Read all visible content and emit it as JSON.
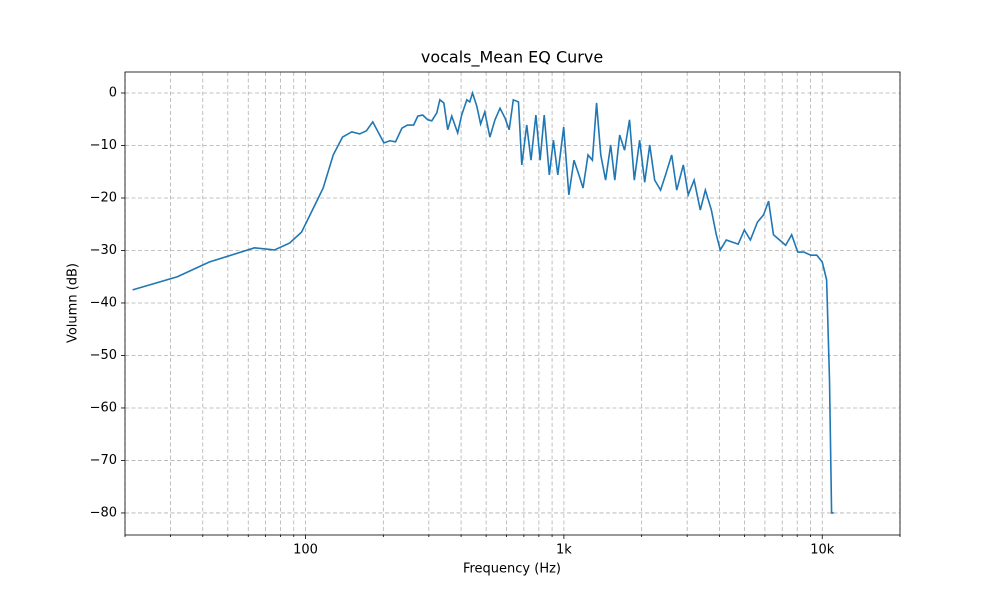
{
  "chart_data": {
    "type": "line",
    "title": "vocals_Mean EQ Curve",
    "xlabel": "Frequency (Hz)",
    "ylabel": "Volumn (dB)",
    "xscale": "log",
    "grid": true,
    "color": "#1f77b4",
    "xlim": [
      20,
      20000
    ],
    "ylim": [
      -84.2,
      4
    ],
    "xticks": [
      {
        "value": 100,
        "label": "100"
      },
      {
        "value": 1000,
        "label": "1k"
      },
      {
        "value": 10000,
        "label": "10k"
      }
    ],
    "xminorticks": [
      20,
      30,
      40,
      50,
      60,
      70,
      80,
      90,
      200,
      300,
      400,
      500,
      600,
      700,
      800,
      900,
      2000,
      3000,
      4000,
      5000,
      6000,
      7000,
      8000,
      9000,
      20000
    ],
    "yticks": [
      {
        "value": 0,
        "label": "0"
      },
      {
        "value": -10,
        "label": "−10"
      },
      {
        "value": -20,
        "label": "−20"
      },
      {
        "value": -30,
        "label": "−30"
      },
      {
        "value": -40,
        "label": "−40"
      },
      {
        "value": -50,
        "label": "−50"
      },
      {
        "value": -60,
        "label": "−60"
      },
      {
        "value": -70,
        "label": "−70"
      },
      {
        "value": -80,
        "label": "−80"
      }
    ],
    "x": [
      21.4,
      31.9,
      42.4,
      63.4,
      75.8,
      86.7,
      96.5,
      111,
      117,
      128,
      139,
      151,
      162,
      172,
      182,
      201,
      212,
      223,
      236,
      248,
      262,
      272,
      284,
      297,
      308,
      322,
      331,
      343,
      355,
      368,
      388,
      402,
      421,
      432,
      443,
      460,
      476,
      494,
      517,
      541,
      566,
      592,
      614,
      637,
      667,
      687,
      718,
      746,
      779,
      809,
      839,
      878,
      911,
      947,
      998,
      1045,
      1094,
      1143,
      1186,
      1240,
      1289,
      1338,
      1389,
      1450,
      1517,
      1574,
      1644,
      1717,
      1795,
      1873,
      1964,
      2055,
      2149,
      2246,
      2367,
      2475,
      2614,
      2734,
      2899,
      3029,
      3192,
      3373,
      3528,
      3723,
      3890,
      4030,
      4252,
      4486,
      4730,
      4994,
      5271,
      5614,
      5930,
      6198,
      6475,
      6836,
      7217,
      7615,
      8040,
      8483,
      9030,
      9530,
      10000,
      10400,
      10670,
      10870,
      11070
    ],
    "values": [
      -37.5,
      -35,
      -32.2,
      -29.5,
      -29.9,
      -28.6,
      -26.5,
      -20.4,
      -18.1,
      -11.8,
      -8.4,
      -7.4,
      -7.8,
      -7.2,
      -5.5,
      -9.5,
      -9.1,
      -9.3,
      -6.7,
      -6.1,
      -6.1,
      -4.4,
      -4.2,
      -5.1,
      -5.3,
      -3.8,
      -1.3,
      -1.9,
      -7,
      -4.4,
      -7.6,
      -4.2,
      -1.3,
      -1.7,
      0,
      -2.5,
      -5.9,
      -3.6,
      -8.4,
      -5.1,
      -2.9,
      -4.8,
      -7,
      -1.3,
      -1.7,
      -13.7,
      -6.1,
      -12.8,
      -4.2,
      -12.8,
      -4.2,
      -15.6,
      -9,
      -15.6,
      -6.5,
      -19.4,
      -12.8,
      -15.6,
      -18.1,
      -11.8,
      -12.8,
      -1.9,
      -11.8,
      -16.6,
      -9.9,
      -16.6,
      -8,
      -10.9,
      -5.1,
      -16.6,
      -9,
      -17,
      -9.9,
      -16.6,
      -18.5,
      -15.6,
      -11.8,
      -18.5,
      -13.7,
      -19.4,
      -16.6,
      -22.3,
      -18.5,
      -22.3,
      -27,
      -29.9,
      -28,
      -28.4,
      -28.8,
      -26.1,
      -28,
      -24.6,
      -23.2,
      -20.6,
      -27,
      -28,
      -29,
      -27,
      -30.3,
      -30.3,
      -30.9,
      -30.9,
      -32.2,
      -35.6,
      -54.7,
      -80,
      -80
    ]
  }
}
